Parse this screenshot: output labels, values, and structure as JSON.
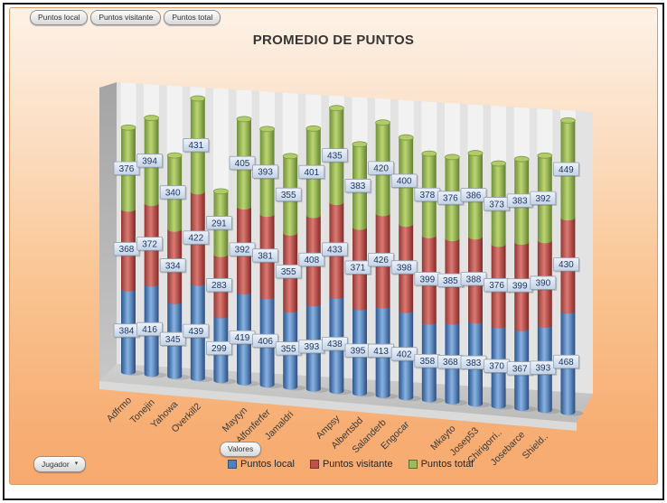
{
  "title": "PROMEDIO DE PUNTOS",
  "pivot_buttons": {
    "series_fields": [
      {
        "label": "Puntos local"
      },
      {
        "label": "Puntos visitante"
      },
      {
        "label": "Puntos total"
      }
    ],
    "values_field": {
      "label": "Valores"
    },
    "axis_field": {
      "label": "Jugador",
      "dropdown_glyph": "▾"
    }
  },
  "chart_data": {
    "type": "bar",
    "subtype": "3d-stacked-cylinder",
    "title": "PROMEDIO DE PUNTOS",
    "stacked": true,
    "legend_position": "bottom",
    "value_axis_visible": false,
    "gridlines": false,
    "data_labels_visible": true,
    "category_axis_label_rotation_deg": 45,
    "categories": [
      "Adfrmo",
      "Tonejin",
      "Yahowa",
      "Overkill2",
      "",
      "Maytyn",
      "Alfonferfer",
      "Jamaldri",
      "",
      "Ampsy",
      "Albertsbd",
      "Salanderb",
      "Engocar",
      "",
      "Mkayto",
      "Josep53",
      "Chirigorri..",
      "Josebarce",
      "Shield..",
      ""
    ],
    "series": [
      {
        "name": "Puntos local",
        "color": "#4F81BD",
        "values": [
          384,
          416,
          345,
          439,
          299,
          419,
          406,
          355,
          393,
          438,
          395,
          413,
          402,
          358,
          368,
          383,
          370,
          367,
          393,
          468
        ]
      },
      {
        "name": "Puntos visitante",
        "color": "#C0504D",
        "values": [
          368,
          372,
          334,
          422,
          283,
          392,
          381,
          355,
          408,
          433,
          371,
          426,
          398,
          399,
          385,
          388,
          376,
          399,
          390,
          430
        ]
      },
      {
        "name": "Puntos total",
        "color": "#9BBB59",
        "values": [
          376,
          394,
          340,
          431,
          291,
          405,
          393,
          355,
          401,
          435,
          383,
          420,
          400,
          378,
          376,
          386,
          373,
          383,
          392,
          449
        ]
      }
    ]
  },
  "colors": {
    "panel_border": "#DB9B66",
    "frame_border": "#1C1C1C",
    "back_wall": "#E3E3E3",
    "data_label_text": "#1F3864"
  }
}
